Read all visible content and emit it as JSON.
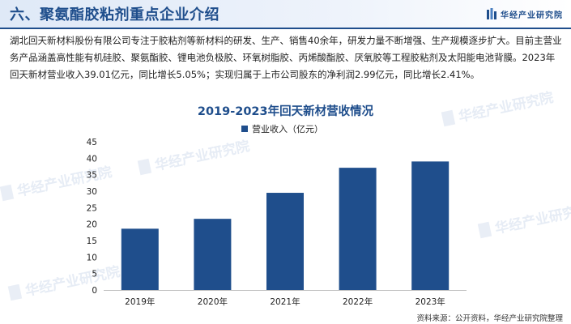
{
  "header": {
    "title": "六、聚氨酯胶粘剂重点企业介绍",
    "logo_text": "华经产业研究院"
  },
  "intro": {
    "text": "湖北回天新材料股份有限公司专注于胶粘剂等新材料的研发、生产、销售40余年，研发力量不断增强、生产规模逐步扩大。目前主营业务产品涵盖高性能有机硅胶、聚氨酯胶、锂电池负极胶、环氧树脂胶、丙烯酸酯胶、厌氧胶等工程胶粘剂及太阳能电池背膜。2023年回天新材营业收入39.01亿元，同比增长5.05%；实现归属于上市公司股东的净利润2.99亿元，同比增长2.41%。"
  },
  "watermark": {
    "text": "华经产业研究院"
  },
  "colors": {
    "bar": "#1f4e8c",
    "title": "#1f4e8c"
  },
  "chart_data": {
    "type": "bar",
    "title": "2019-2023年回天新材营收情况",
    "categories": [
      "2019年",
      "2020年",
      "2021年",
      "2022年",
      "2023年"
    ],
    "series": [
      {
        "name": "营业收入（亿元）",
        "values": [
          18.6,
          21.6,
          29.5,
          37.1,
          39.01
        ]
      }
    ],
    "ylim": [
      0,
      45
    ],
    "yticks": [
      0,
      5,
      10,
      15,
      20,
      25,
      30,
      35,
      40,
      45
    ],
    "grid": false,
    "legend": "top-center"
  },
  "source": {
    "text": "资料来源：公开资料，华经产业研究院整理"
  }
}
